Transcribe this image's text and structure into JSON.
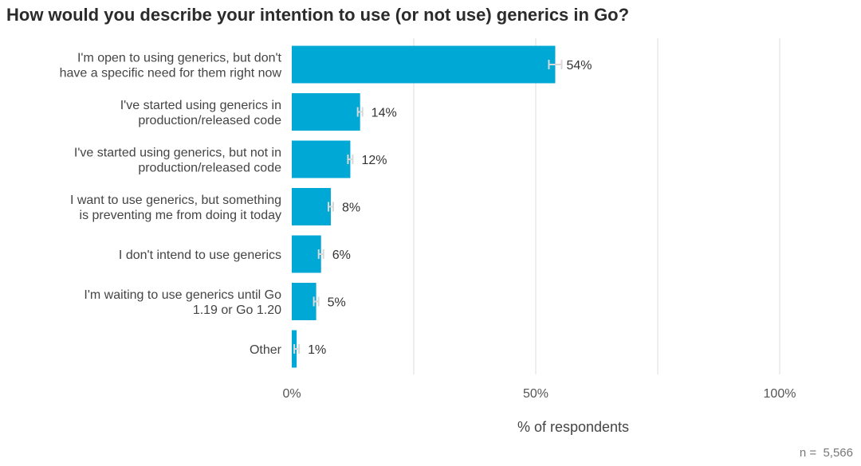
{
  "title": "How would you describe your intention to use (or not use) generics in Go?",
  "footnote": "n =  5,566",
  "colors": {
    "bar": "#00a8d6",
    "grid": "#e2e2e2",
    "errorbar": "#d9d9d9"
  },
  "chart_data": {
    "type": "bar",
    "orientation": "horizontal",
    "categories": [
      [
        "I'm open to using generics, but don't",
        "have a specific need for them right now"
      ],
      [
        "I've started using generics in",
        "production/released code"
      ],
      [
        "I've started using generics, but not in",
        "production/released code"
      ],
      [
        "I want to use generics, but something",
        "is preventing me from doing it today"
      ],
      [
        "I don't intend to use generics"
      ],
      [
        "I'm waiting to use generics until Go",
        "1.19 or Go 1.20"
      ],
      [
        "Other"
      ]
    ],
    "values": [
      54,
      14,
      12,
      8,
      6,
      5,
      1
    ],
    "value_labels": [
      "54%",
      "14%",
      "12%",
      "8%",
      "6%",
      "5%",
      "1%"
    ],
    "error_bars": true,
    "xlim": [
      0,
      100
    ],
    "xticks": [
      0,
      50,
      100
    ],
    "xtick_labels": [
      "0%",
      "50%",
      "100%"
    ],
    "gridlines": [
      25,
      50,
      75,
      100
    ],
    "xlabel": "% of respondents",
    "grid": true,
    "legend": false
  }
}
